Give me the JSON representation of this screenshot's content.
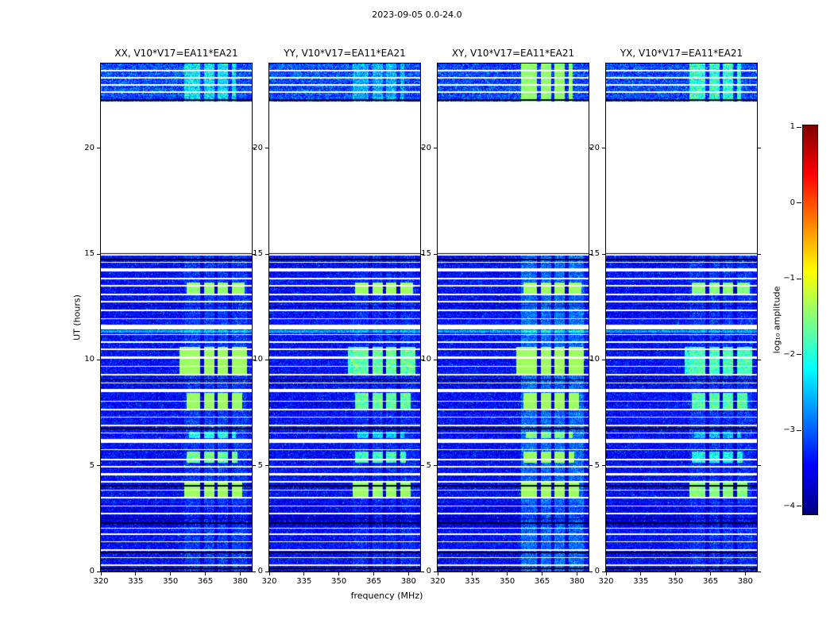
{
  "chart_data": {
    "type": "heatmap",
    "title": "2023-09-05 0.0-24.0",
    "xlabel": "frequency (MHz)",
    "ylabel": "UT (hours)",
    "xlim": [
      320,
      385
    ],
    "ylim": [
      0,
      24
    ],
    "xticks": [
      320,
      335,
      350,
      365,
      380
    ],
    "yticks": [
      0,
      5,
      10,
      15,
      20
    ],
    "grid": false,
    "panels": [
      {
        "pol": "XX",
        "title": "XX, V10*V17=EA11*EA21"
      },
      {
        "pol": "YY",
        "title": "YY, V10*V17=EA11*EA21"
      },
      {
        "pol": "XY",
        "title": "XY, V10*V17=EA11*EA21"
      },
      {
        "pol": "YX",
        "title": "YX, V10*V17=EA11*EA21"
      }
    ],
    "colorbar": {
      "label": "log₁₀ amplitude",
      "ticks": [
        1,
        0,
        -1,
        -2,
        -3,
        -4
      ],
      "tick_labels": [
        "1",
        "0",
        "−1",
        "−2",
        "−3",
        "−4"
      ],
      "colormap": "jet",
      "gradient": [
        "#7f0000",
        "#ff0000",
        "#ff8000",
        "#ffff00",
        "#80ff80",
        "#00ffff",
        "#0080ff",
        "#0000ff",
        "#000080"
      ]
    },
    "data_blocks": [
      {
        "t0": 0.0,
        "t1": 15.05,
        "base": 0.06,
        "speck": 0.16
      },
      {
        "t0": 22.2,
        "t1": 24.0,
        "base": 0.1,
        "speck": 0.22
      }
    ],
    "flagged_time_stripes": [
      {
        "t": 0.3,
        "px": 2
      },
      {
        "t": 0.65,
        "px": 1
      },
      {
        "t": 1.0,
        "px": 2
      },
      {
        "t": 1.4,
        "px": 1
      },
      {
        "t": 1.75,
        "px": 2
      },
      {
        "t": 2.05,
        "px": 1
      },
      {
        "t": 2.75,
        "px": 2
      },
      {
        "t": 3.1,
        "px": 1
      },
      {
        "t": 3.5,
        "px": 2
      },
      {
        "t": 3.85,
        "px": 1
      },
      {
        "t": 4.25,
        "px": 2
      },
      {
        "t": 4.6,
        "px": 3
      },
      {
        "t": 4.95,
        "px": 1
      },
      {
        "t": 5.3,
        "px": 2
      },
      {
        "t": 5.75,
        "px": 1
      },
      {
        "t": 6.15,
        "px": 5
      },
      {
        "t": 6.55,
        "px": 1
      },
      {
        "t": 6.9,
        "px": 2
      },
      {
        "t": 7.3,
        "px": 1
      },
      {
        "t": 7.65,
        "px": 2
      },
      {
        "t": 8.05,
        "px": 1
      },
      {
        "t": 8.55,
        "px": 4
      },
      {
        "t": 8.9,
        "px": 1
      },
      {
        "t": 9.3,
        "px": 2
      },
      {
        "t": 9.7,
        "px": 1
      },
      {
        "t": 10.1,
        "px": 3
      },
      {
        "t": 10.5,
        "px": 1
      },
      {
        "t": 10.85,
        "px": 2
      },
      {
        "t": 11.2,
        "px": 1
      },
      {
        "t": 11.55,
        "px": 5
      },
      {
        "t": 11.95,
        "px": 1
      },
      {
        "t": 12.35,
        "px": 2
      },
      {
        "t": 12.75,
        "px": 1
      },
      {
        "t": 13.1,
        "px": 2
      },
      {
        "t": 13.5,
        "px": 1
      },
      {
        "t": 13.85,
        "px": 2
      },
      {
        "t": 14.25,
        "px": 3
      },
      {
        "t": 14.6,
        "px": 1
      },
      {
        "t": 14.95,
        "px": 2
      },
      {
        "t": 22.65,
        "px": 2
      },
      {
        "t": 22.99,
        "px": 2
      },
      {
        "t": 23.33,
        "px": 2
      },
      {
        "t": 23.66,
        "px": 2
      }
    ],
    "dark_time_rows": [
      {
        "t": 0.15,
        "px": 1
      },
      {
        "t": 0.9,
        "px": 1
      },
      {
        "t": 2.3,
        "px": 2
      },
      {
        "t": 2.5,
        "px": 1
      },
      {
        "t": 4.05,
        "px": 1
      },
      {
        "t": 6.75,
        "px": 1
      },
      {
        "t": 9.05,
        "px": 1
      },
      {
        "t": 12.55,
        "px": 1
      },
      {
        "t": 14.75,
        "px": 2
      },
      {
        "t": 15.0,
        "px": 2
      },
      {
        "t": 22.26,
        "px": 2
      }
    ],
    "bright_time_rows": [
      {
        "t": 11.35,
        "px": 3,
        "boost": 0.16
      },
      {
        "t": 10.12,
        "px": 3,
        "boost": 0.1
      }
    ],
    "dim_time_bands": [
      {
        "t0": 2.1,
        "t1": 3.2,
        "factor": 0.55
      }
    ],
    "rfi_patches": [
      {
        "t0": 13.05,
        "t1": 13.65,
        "f0": 357,
        "f1": 382,
        "strength": [
          0.42,
          0.55,
          0.55,
          0.38
        ]
      },
      {
        "t0": 9.35,
        "t1": 10.6,
        "f0": 354,
        "f1": 383,
        "strength": [
          0.5,
          0.32,
          0.55,
          0.28
        ]
      },
      {
        "t0": 7.7,
        "t1": 8.45,
        "f0": 357,
        "f1": 381,
        "strength": [
          0.45,
          0.32,
          0.5,
          0.28
        ]
      },
      {
        "t0": 5.15,
        "t1": 5.65,
        "f0": 357,
        "f1": 379,
        "strength": [
          0.32,
          0.28,
          0.4,
          0.22
        ]
      },
      {
        "t0": 3.45,
        "t1": 4.25,
        "f0": 356,
        "f1": 381,
        "strength": [
          0.5,
          0.45,
          0.6,
          0.38
        ]
      },
      {
        "t0": 6.3,
        "t1": 6.6,
        "f0": 358,
        "f1": 378,
        "strength": [
          0.22,
          0.18,
          0.28,
          0.14
        ]
      },
      {
        "t0": 0.0,
        "t1": 15.05,
        "f0": 356,
        "f1": 383,
        "strength": [
          0.05,
          0.03,
          0.1,
          0.04
        ]
      },
      {
        "t0": 22.2,
        "t1": 24.0,
        "f0": 356,
        "f1": 378,
        "strength": [
          0.16,
          0.1,
          0.4,
          0.22
        ]
      }
    ],
    "patch_channel_gaps": [
      [
        362.8,
        364.4
      ],
      [
        368.8,
        370.4
      ],
      [
        374.8,
        376.4
      ]
    ]
  }
}
